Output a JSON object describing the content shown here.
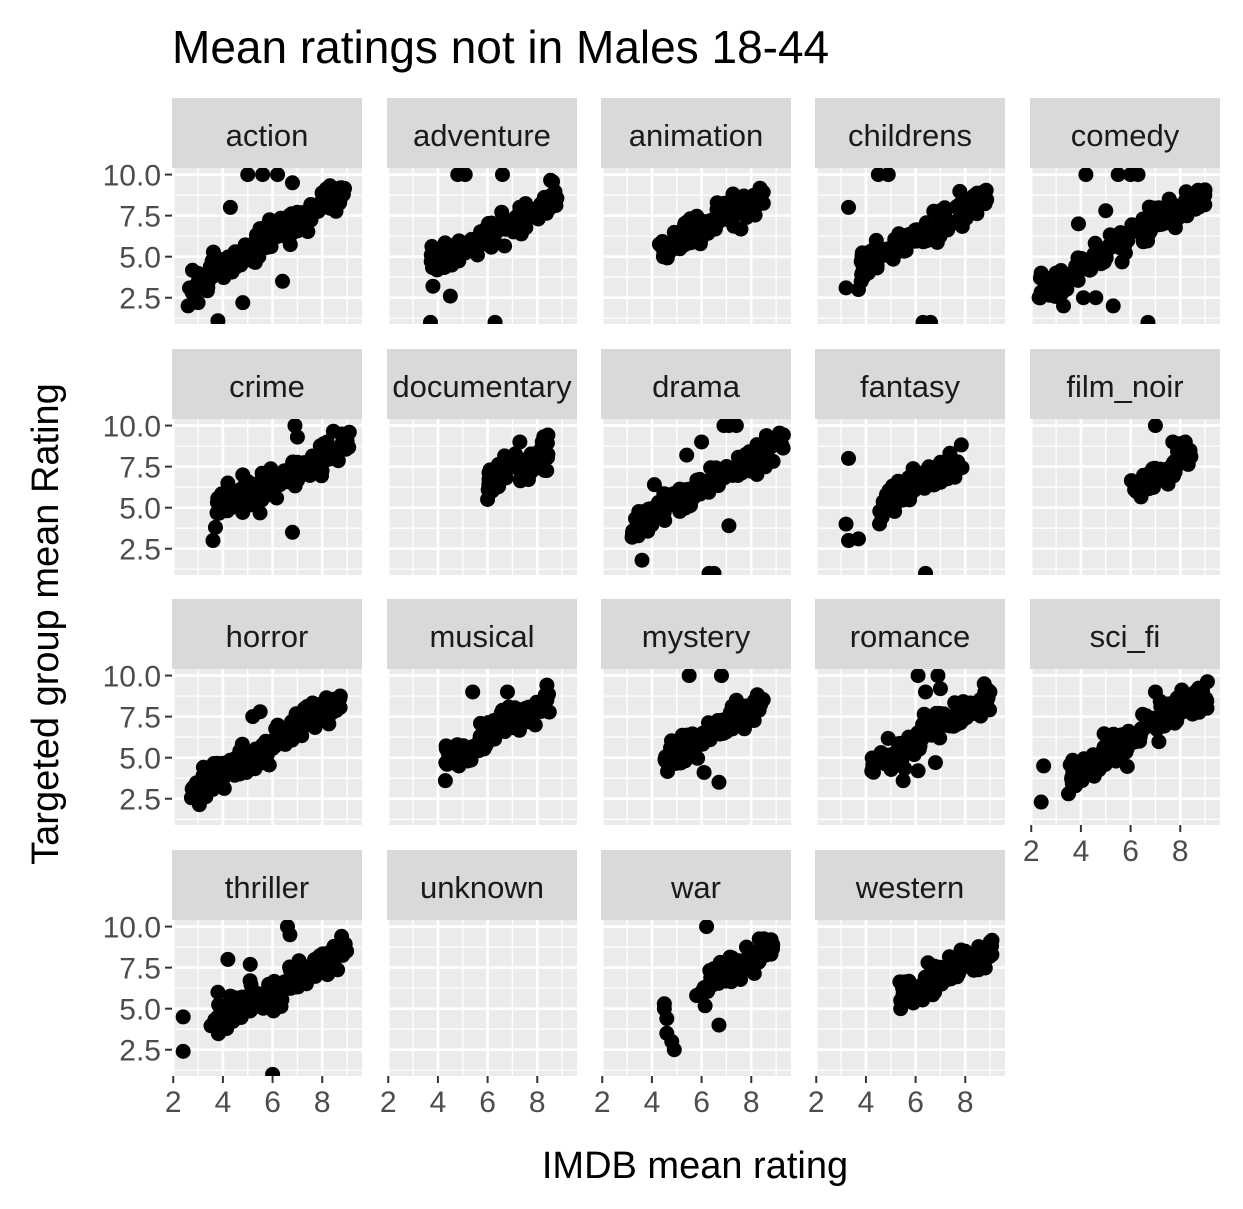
{
  "chart_data": {
    "type": "scatter",
    "title": "Mean ratings not in Males 18-44",
    "xlabel": "IMDB mean rating",
    "ylabel": "Targeted group mean Rating",
    "xlim": [
      1.95,
      9.6
    ],
    "ylim": [
      0.9,
      10.4
    ],
    "x_ticks": [
      2,
      4,
      6,
      8
    ],
    "y_ticks": [
      2.5,
      5.0,
      7.5,
      10.0
    ],
    "x_tick_labels": [
      "2",
      "4",
      "6",
      "8"
    ],
    "y_tick_labels": [
      "2.5",
      "5.0",
      "7.5",
      "10.0"
    ],
    "grid": true,
    "point_color": "#000000",
    "panel_background": "#ebebeb",
    "strip_background": "#d9d9d9",
    "grid_color": "#ffffff",
    "panels": [
      {
        "name": "action",
        "trend": [
          [
            2.6,
            2.8
          ],
          [
            3.5,
            3.9
          ],
          [
            4.5,
            4.8
          ],
          [
            5.5,
            5.8
          ],
          [
            6.5,
            6.7
          ],
          [
            7.5,
            7.6
          ],
          [
            8.5,
            8.5
          ],
          [
            9.0,
            8.9
          ]
        ],
        "outliers": [
          [
            3.8,
            1.1
          ],
          [
            3.0,
            2.2
          ],
          [
            2.6,
            2.0
          ],
          [
            4.8,
            2.2
          ],
          [
            6.4,
            3.5
          ],
          [
            5.0,
            10.0
          ],
          [
            5.6,
            10.0
          ],
          [
            6.2,
            10.0
          ],
          [
            6.8,
            9.5
          ],
          [
            4.3,
            8.0
          ]
        ]
      },
      {
        "name": "adventure",
        "trend": [
          [
            3.5,
            5.0
          ],
          [
            4.3,
            5.1
          ],
          [
            5.0,
            5.6
          ],
          [
            6.0,
            6.3
          ],
          [
            7.0,
            7.1
          ],
          [
            8.0,
            7.9
          ],
          [
            8.8,
            8.6
          ]
        ],
        "outliers": [
          [
            3.7,
            1.0
          ],
          [
            4.5,
            2.6
          ],
          [
            3.8,
            3.2
          ],
          [
            6.3,
            1.0
          ],
          [
            4.8,
            10.0
          ],
          [
            5.1,
            10.0
          ],
          [
            6.6,
            10.0
          ]
        ]
      },
      {
        "name": "animation",
        "trend": [
          [
            4.3,
            5.3
          ],
          [
            5.0,
            6.0
          ],
          [
            6.0,
            6.8
          ],
          [
            7.0,
            7.6
          ],
          [
            8.0,
            8.2
          ],
          [
            8.6,
            8.8
          ]
        ],
        "outliers": [
          [
            4.4,
            5.6
          ],
          [
            5.0,
            6.1
          ]
        ]
      },
      {
        "name": "childrens",
        "trend": [
          [
            3.8,
            4.4
          ],
          [
            4.5,
            5.2
          ],
          [
            5.5,
            5.8
          ],
          [
            6.5,
            6.6
          ],
          [
            7.5,
            7.4
          ],
          [
            8.5,
            8.2
          ],
          [
            8.9,
            8.7
          ]
        ],
        "outliers": [
          [
            3.3,
            8.0
          ],
          [
            3.2,
            3.1
          ],
          [
            3.7,
            3.0
          ],
          [
            4.5,
            10.0
          ],
          [
            4.9,
            10.0
          ],
          [
            6.3,
            1.0
          ],
          [
            6.6,
            1.0
          ]
        ]
      },
      {
        "name": "comedy",
        "trend": [
          [
            2.3,
            2.8
          ],
          [
            3.5,
            3.9
          ],
          [
            4.5,
            4.9
          ],
          [
            5.5,
            5.8
          ],
          [
            6.5,
            6.8
          ],
          [
            7.5,
            7.7
          ],
          [
            8.5,
            8.4
          ],
          [
            9.0,
            8.8
          ]
        ],
        "outliers": [
          [
            2.4,
            4.0
          ],
          [
            3.0,
            4.0
          ],
          [
            3.3,
            2.0
          ],
          [
            4.1,
            2.5
          ],
          [
            4.6,
            2.5
          ],
          [
            5.3,
            2.0
          ],
          [
            6.7,
            1.0
          ],
          [
            4.2,
            10.0
          ],
          [
            5.5,
            10.0
          ],
          [
            6.0,
            10.0
          ],
          [
            6.3,
            10.0
          ],
          [
            3.9,
            7.0
          ],
          [
            5.0,
            7.8
          ]
        ]
      },
      {
        "name": "crime",
        "trend": [
          [
            3.6,
            4.5
          ],
          [
            4.5,
            5.5
          ],
          [
            5.5,
            6.0
          ],
          [
            6.5,
            6.8
          ],
          [
            7.5,
            7.7
          ],
          [
            8.5,
            8.6
          ],
          [
            9.1,
            9.1
          ]
        ],
        "outliers": [
          [
            3.6,
            3.0
          ],
          [
            3.7,
            3.8
          ],
          [
            4.2,
            6.5
          ],
          [
            4.8,
            7.0
          ],
          [
            6.8,
            3.5
          ],
          [
            6.9,
            10.0
          ],
          [
            7.0,
            9.3
          ]
        ]
      },
      {
        "name": "documentary",
        "trend": [
          [
            6.0,
            6.5
          ],
          [
            6.5,
            6.9
          ],
          [
            7.0,
            7.2
          ],
          [
            7.5,
            7.6
          ],
          [
            8.0,
            7.9
          ],
          [
            8.5,
            8.4
          ]
        ],
        "outliers": [
          [
            6.0,
            5.5
          ],
          [
            6.1,
            7.3
          ],
          [
            7.3,
            9.0
          ],
          [
            8.2,
            9.0
          ]
        ]
      },
      {
        "name": "drama",
        "trend": [
          [
            3.2,
            3.9
          ],
          [
            4.0,
            4.6
          ],
          [
            5.0,
            5.4
          ],
          [
            6.0,
            6.2
          ],
          [
            7.0,
            7.0
          ],
          [
            8.0,
            7.9
          ],
          [
            9.0,
            8.8
          ],
          [
            9.3,
            9.3
          ]
        ],
        "outliers": [
          [
            3.6,
            1.8
          ],
          [
            3.2,
            3.2
          ],
          [
            6.3,
            1.0
          ],
          [
            6.5,
            1.0
          ],
          [
            6.9,
            10.0
          ],
          [
            7.1,
            10.0
          ],
          [
            7.4,
            10.0
          ],
          [
            6.0,
            9.0
          ],
          [
            4.1,
            6.4
          ],
          [
            5.4,
            8.2
          ],
          [
            7.1,
            3.9
          ],
          [
            5.5,
            5.1
          ]
        ]
      },
      {
        "name": "fantasy",
        "trend": [
          [
            4.5,
            4.5
          ],
          [
            5.0,
            5.3
          ],
          [
            5.7,
            6.0
          ],
          [
            6.5,
            6.8
          ],
          [
            7.5,
            7.4
          ],
          [
            8.0,
            8.0
          ]
        ],
        "outliers": [
          [
            3.3,
            8.0
          ],
          [
            3.2,
            4.0
          ],
          [
            3.3,
            3.0
          ],
          [
            3.7,
            3.1
          ],
          [
            6.4,
            1.0
          ]
        ]
      },
      {
        "name": "film_noir",
        "trend": [
          [
            6.0,
            5.8
          ],
          [
            6.5,
            6.6
          ],
          [
            7.0,
            7.0
          ],
          [
            7.5,
            7.5
          ],
          [
            8.0,
            8.0
          ],
          [
            8.5,
            8.3
          ]
        ],
        "outliers": [
          [
            7.0,
            10.0
          ],
          [
            7.7,
            9.0
          ],
          [
            8.0,
            8.9
          ]
        ]
      },
      {
        "name": "horror",
        "trend": [
          [
            2.7,
            2.8
          ],
          [
            3.5,
            3.6
          ],
          [
            4.5,
            4.5
          ],
          [
            5.5,
            5.3
          ],
          [
            6.5,
            6.5
          ],
          [
            7.5,
            7.5
          ],
          [
            8.5,
            8.3
          ],
          [
            8.8,
            8.8
          ]
        ],
        "outliers": [
          [
            3.2,
            3.9
          ],
          [
            4.4,
            4.2
          ],
          [
            5.2,
            7.5
          ],
          [
            5.5,
            7.8
          ]
        ]
      },
      {
        "name": "musical",
        "trend": [
          [
            4.3,
            4.9
          ],
          [
            5.2,
            5.5
          ],
          [
            6.0,
            6.5
          ],
          [
            7.0,
            7.2
          ],
          [
            8.0,
            7.9
          ],
          [
            8.5,
            8.6
          ]
        ],
        "outliers": [
          [
            4.3,
            3.6
          ],
          [
            5.2,
            4.8
          ],
          [
            5.4,
            9.0
          ],
          [
            6.8,
            9.0
          ]
        ]
      },
      {
        "name": "mystery",
        "trend": [
          [
            4.5,
            5.2
          ],
          [
            5.5,
            5.8
          ],
          [
            6.5,
            6.6
          ],
          [
            7.5,
            7.5
          ],
          [
            8.5,
            8.4
          ]
        ],
        "outliers": [
          [
            5.5,
            10.0
          ],
          [
            6.8,
            10.0
          ],
          [
            5.2,
            6.0
          ],
          [
            6.1,
            4.1
          ],
          [
            6.7,
            3.5
          ],
          [
            7.4,
            8.5
          ]
        ]
      },
      {
        "name": "romance",
        "trend": [
          [
            4.2,
            4.6
          ],
          [
            5.0,
            5.1
          ],
          [
            6.0,
            6.0
          ],
          [
            7.0,
            6.9
          ],
          [
            8.0,
            7.8
          ],
          [
            9.0,
            8.7
          ]
        ],
        "outliers": [
          [
            5.5,
            3.6
          ],
          [
            6.1,
            10.0
          ],
          [
            6.9,
            10.0
          ],
          [
            6.4,
            9.0
          ],
          [
            7.0,
            9.2
          ],
          [
            6.1,
            4.2
          ],
          [
            6.8,
            4.7
          ]
        ]
      },
      {
        "name": "sci_fi",
        "trend": [
          [
            3.5,
            3.8
          ],
          [
            4.5,
            4.7
          ],
          [
            5.5,
            5.6
          ],
          [
            6.5,
            6.5
          ],
          [
            7.5,
            7.6
          ],
          [
            8.5,
            8.5
          ],
          [
            9.1,
            9.0
          ]
        ],
        "outliers": [
          [
            2.4,
            2.3
          ],
          [
            2.5,
            4.5
          ],
          [
            3.5,
            2.8
          ],
          [
            7.0,
            9.0
          ],
          [
            8.8,
            9.0
          ]
        ]
      },
      {
        "name": "thriller",
        "trend": [
          [
            3.5,
            4.3
          ],
          [
            4.5,
            5.0
          ],
          [
            5.5,
            5.7
          ],
          [
            6.5,
            6.6
          ],
          [
            7.5,
            7.5
          ],
          [
            8.5,
            8.2
          ],
          [
            9.0,
            8.7
          ]
        ],
        "outliers": [
          [
            2.4,
            2.4
          ],
          [
            2.4,
            4.5
          ],
          [
            3.8,
            6.0
          ],
          [
            4.2,
            8.0
          ],
          [
            6.6,
            10.0
          ],
          [
            6.7,
            9.5
          ],
          [
            6.0,
            1.0
          ],
          [
            5.1,
            7.7
          ]
        ]
      },
      {
        "name": "unknown",
        "trend": [],
        "outliers": []
      },
      {
        "name": "war",
        "trend": [
          [
            6.0,
            6.0
          ],
          [
            6.5,
            6.8
          ],
          [
            7.0,
            7.1
          ],
          [
            7.5,
            7.5
          ],
          [
            8.0,
            7.9
          ],
          [
            8.5,
            8.4
          ],
          [
            9.0,
            8.9
          ]
        ],
        "outliers": [
          [
            4.5,
            5.3
          ],
          [
            4.6,
            4.4
          ],
          [
            4.6,
            3.5
          ],
          [
            4.8,
            3.0
          ],
          [
            4.9,
            2.5
          ],
          [
            5.8,
            5.8
          ],
          [
            6.2,
            10.0
          ],
          [
            6.7,
            4.0
          ],
          [
            4.5,
            5.0
          ]
        ]
      },
      {
        "name": "western",
        "trend": [
          [
            5.3,
            6.0
          ],
          [
            6.0,
            6.4
          ],
          [
            7.0,
            7.0
          ],
          [
            8.0,
            7.7
          ],
          [
            9.0,
            8.4
          ],
          [
            9.1,
            9.0
          ]
        ],
        "outliers": [
          [
            5.4,
            5.0
          ],
          [
            5.4,
            5.5
          ],
          [
            6.5,
            7.8
          ],
          [
            8.0,
            8.5
          ]
        ]
      }
    ]
  }
}
